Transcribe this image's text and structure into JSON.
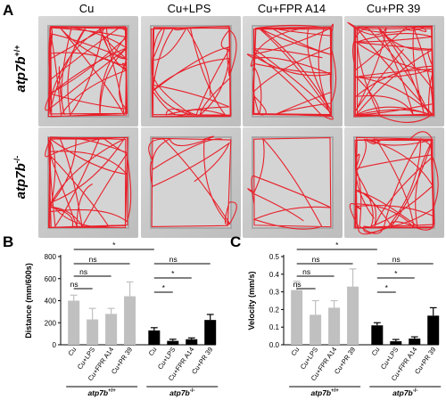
{
  "panelA": {
    "letter": "A",
    "columns": [
      "Cu",
      "Cu+LPS",
      "Cu+FPR A14",
      "Cu+PR 39"
    ],
    "rows": [
      {
        "label": "atp7b",
        "sup": "+/+"
      },
      {
        "label": "atp7b",
        "sup": "-/-"
      }
    ],
    "track_color": "#e8202a"
  },
  "panelB": {
    "letter": "B"
  },
  "panelC": {
    "letter": "C"
  },
  "chart_data": [
    {
      "type": "bar",
      "panel": "B",
      "ylabel": "Distance (mm/600s)",
      "ylim": [
        0,
        800
      ],
      "yticks": [
        0,
        200,
        400,
        600,
        800
      ],
      "categories": [
        "Cu",
        "Cu+LPS",
        "Cu+FPR A14",
        "Cu+PR 39",
        "Cu",
        "Cu+LPS",
        "Cu+FPR A14",
        "Cu+PR 39"
      ],
      "groups": [
        {
          "label": "atp7b",
          "sup": "+/+",
          "color": "#c0c0c0",
          "values": [
            400,
            230,
            280,
            440
          ],
          "errors": [
            50,
            100,
            50,
            130
          ]
        },
        {
          "label": "atp7b",
          "sup": "-/-",
          "color": "#000000",
          "values": [
            130,
            35,
            50,
            225
          ],
          "errors": [
            25,
            15,
            12,
            50
          ]
        }
      ],
      "significance": [
        {
          "from": 0,
          "to": 1,
          "label": "ns"
        },
        {
          "from": 0,
          "to": 2,
          "label": "ns"
        },
        {
          "from": 0,
          "to": 3,
          "label": "ns"
        },
        {
          "from": 0,
          "to": 4,
          "label": "*"
        },
        {
          "from": 4,
          "to": 5,
          "label": "*"
        },
        {
          "from": 4,
          "to": 6,
          "label": "*"
        },
        {
          "from": 4,
          "to": 7,
          "label": "ns"
        }
      ]
    },
    {
      "type": "bar",
      "panel": "C",
      "ylabel": "Velocity (mm/s)",
      "ylim": [
        0,
        0.5
      ],
      "yticks": [
        0.0,
        0.1,
        0.2,
        0.3,
        0.4,
        0.5
      ],
      "categories": [
        "Cu",
        "Cu+LPS",
        "Cu+FPR A14",
        "Cu+PR 39",
        "Cu",
        "Cu+LPS",
        "Cu+FPR A14",
        "Cu+PR 39"
      ],
      "groups": [
        {
          "label": "atp7b",
          "sup": "+/+",
          "color": "#c0c0c0",
          "values": [
            0.31,
            0.17,
            0.21,
            0.33
          ],
          "errors": [
            0.05,
            0.08,
            0.04,
            0.1
          ]
        },
        {
          "label": "atp7b",
          "sup": "-/-",
          "color": "#000000",
          "values": [
            0.11,
            0.02,
            0.035,
            0.165
          ],
          "errors": [
            0.015,
            0.01,
            0.01,
            0.045
          ]
        }
      ],
      "significance": [
        {
          "from": 0,
          "to": 1,
          "label": "ns"
        },
        {
          "from": 0,
          "to": 2,
          "label": "ns"
        },
        {
          "from": 0,
          "to": 3,
          "label": "ns"
        },
        {
          "from": 0,
          "to": 4,
          "label": "*"
        },
        {
          "from": 4,
          "to": 5,
          "label": "*"
        },
        {
          "from": 4,
          "to": 6,
          "label": "*"
        },
        {
          "from": 4,
          "to": 7,
          "label": "ns"
        }
      ]
    }
  ]
}
